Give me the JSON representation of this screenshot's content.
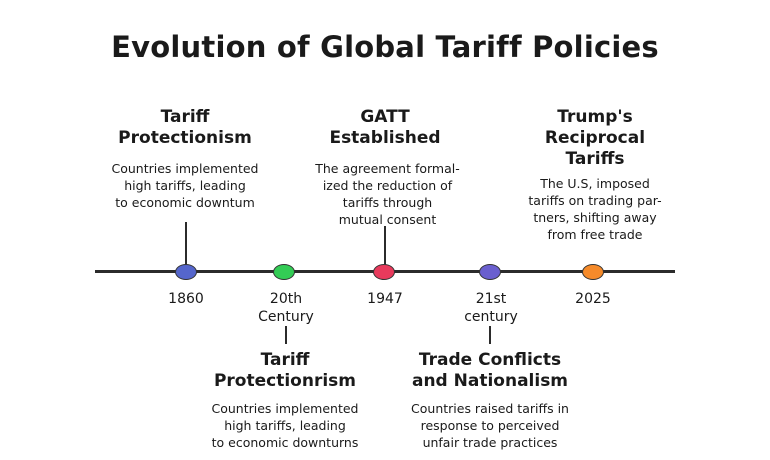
{
  "title": "Evolution of Global Tariff Policies",
  "timeline": {
    "ticks": [
      {
        "label": "1860",
        "color": "#5566cc"
      },
      {
        "label": "20th\nCentury",
        "color": "#33cc55"
      },
      {
        "label": "1947",
        "color": "#e83a5c"
      },
      {
        "label": "21st\ncentury",
        "color": "#6a5fcf"
      },
      {
        "label": "2025",
        "color": "#f58a2a"
      }
    ]
  },
  "events": {
    "above": [
      {
        "title": "Tariff\nProtectionism",
        "description": "Countries implemented\nhigh tariffs, leading\nto economic downtum"
      },
      {
        "title": "GATT\nEstablished",
        "description": "The agreement formal-\nized the reduction of\ntariffs through\nmutual consent"
      },
      {
        "title": "Trump's\nReciprocal\nTariffs",
        "description": "The U.S, imposed\ntariffs on trading par-\ntners, shifting away\nfrom free trade"
      }
    ],
    "below": [
      {
        "title": "Tariff\nProtectionrism",
        "description": "Countries implemented\nhigh tariffs, leading\nto economic downturns"
      },
      {
        "title": "Trade Conflicts\nand Nationalism",
        "description": "Countries raised tariffs in\nresponse to perceived\nunfair trade practices"
      }
    ]
  }
}
